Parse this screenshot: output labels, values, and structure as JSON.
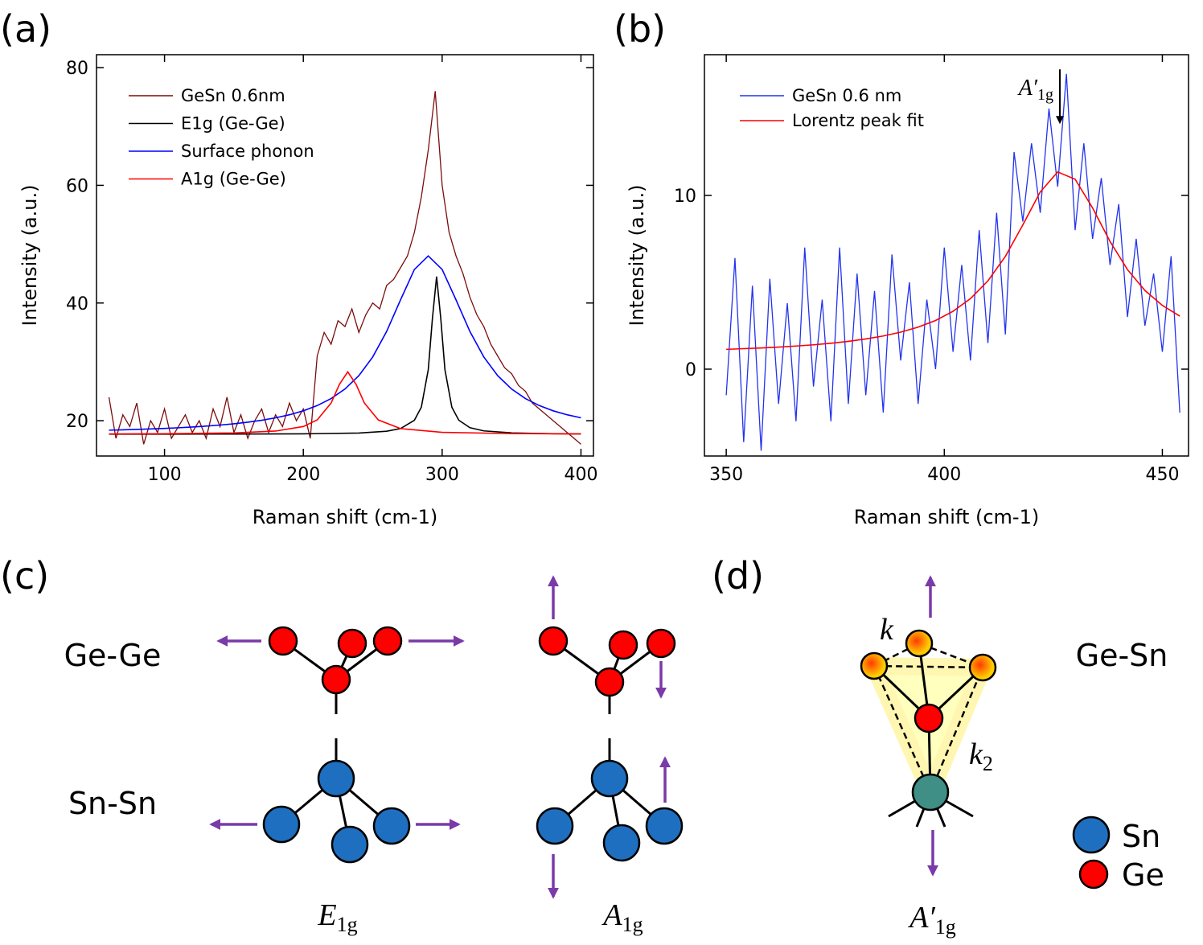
{
  "panel_labels": [
    "(a)",
    "(b)",
    "(c)",
    "(d)"
  ],
  "chart_data": [
    {
      "type": "line",
      "xlabel": "Raman shift (cm-1)",
      "ylabel": "Intensity (a.u.)",
      "xlim": [
        51,
        409
      ],
      "ylim": [
        14,
        82.2
      ],
      "xticks": [
        100,
        200,
        300,
        400
      ],
      "yticks": [
        20,
        40,
        60,
        80
      ],
      "legend": "upper left",
      "series": [
        {
          "name": "GeSn 0.6nm",
          "color": "#7b0c0c",
          "x": [
            60,
            65,
            70,
            75,
            80,
            85,
            90,
            95,
            100,
            105,
            110,
            115,
            120,
            125,
            130,
            135,
            140,
            145,
            150,
            155,
            160,
            165,
            170,
            175,
            180,
            185,
            190,
            195,
            200,
            205,
            210,
            215,
            220,
            225,
            230,
            235,
            240,
            245,
            250,
            255,
            260,
            265,
            270,
            275,
            280,
            285,
            290,
            295,
            300,
            305,
            310,
            315,
            320,
            325,
            330,
            335,
            340,
            345,
            350,
            355,
            360,
            365,
            370,
            375,
            380,
            385,
            390,
            395,
            400
          ],
          "values": [
            24,
            17,
            21,
            19,
            23,
            16,
            20,
            18,
            22,
            17,
            19,
            21,
            18,
            20,
            17,
            22,
            19,
            24,
            18,
            21,
            17,
            20,
            22,
            18,
            21,
            19,
            23,
            20,
            22,
            17,
            31,
            35,
            33,
            37,
            36,
            39,
            35,
            38,
            40,
            39,
            43,
            44,
            46,
            48,
            52,
            58,
            66,
            76,
            60,
            52,
            48,
            45,
            41,
            38,
            36,
            33,
            31,
            29,
            28,
            26,
            25,
            23,
            22,
            21,
            20,
            19,
            18,
            17,
            16
          ]
        },
        {
          "name": "E1g (Ge-Ge)",
          "color": "#000000",
          "x": [
            60,
            100,
            150,
            200,
            240,
            260,
            270,
            280,
            285,
            290,
            293,
            296,
            299,
            302,
            307,
            312,
            320,
            330,
            350,
            380,
            400
          ],
          "values": [
            17.71,
            17.72,
            17.73,
            17.77,
            17.91,
            18.21,
            18.66,
            20.08,
            22.29,
            28.68,
            37.4,
            44.5,
            37.4,
            28.68,
            22.29,
            20.08,
            18.81,
            18.27,
            17.93,
            17.79,
            17.76
          ]
        },
        {
          "name": "Surface phonon",
          "color": "#0000ff",
          "x": [
            60,
            70,
            80,
            90,
            100,
            110,
            120,
            130,
            140,
            150,
            160,
            170,
            180,
            190,
            200,
            210,
            220,
            230,
            240,
            250,
            260,
            270,
            280,
            290,
            300,
            310,
            320,
            330,
            340,
            350,
            360,
            370,
            380,
            390,
            400
          ],
          "values": [
            18.39,
            18.45,
            18.52,
            18.6,
            18.69,
            18.8,
            18.93,
            19.08,
            19.26,
            19.48,
            19.75,
            20.07,
            20.49,
            21.01,
            21.68,
            22.57,
            23.76,
            25.39,
            27.66,
            30.84,
            35.16,
            40.53,
            45.7,
            48.0,
            45.7,
            40.53,
            35.16,
            30.84,
            27.66,
            25.39,
            23.76,
            22.57,
            21.68,
            21.01,
            20.49
          ]
        },
        {
          "name": "A1g (Ge-Ge)",
          "color": "#ff0000",
          "x": [
            60,
            100,
            150,
            180,
            200,
            210,
            220,
            226,
            232,
            238,
            244,
            254,
            270,
            300,
            350,
            400
          ],
          "values": [
            17.75,
            17.79,
            17.92,
            18.24,
            19.01,
            20.13,
            23.0,
            26.18,
            28.3,
            26.18,
            23.0,
            20.13,
            18.66,
            18.02,
            17.81,
            17.75
          ]
        }
      ]
    },
    {
      "type": "line",
      "xlabel": "Raman shift (cm-1)",
      "ylabel": "Intensity (a.u.)",
      "xlim": [
        345,
        456
      ],
      "ylim": [
        -5,
        18.1
      ],
      "xticks": [
        350,
        400,
        450
      ],
      "yticks": [
        0,
        10
      ],
      "legend": "upper left",
      "annotations": [
        {
          "text": {
            "main": "A′",
            "sub": "1g"
          },
          "x": 426.5,
          "y": 14.2
        }
      ],
      "series": [
        {
          "name": "GeSn 0.6 nm",
          "color": "#2233ee",
          "x": [
            350,
            352,
            354,
            356,
            358,
            360,
            362,
            364,
            366,
            368,
            370,
            372,
            374,
            376,
            378,
            380,
            382,
            384,
            386,
            388,
            390,
            392,
            394,
            396,
            398,
            400,
            402,
            404,
            406,
            408,
            410,
            412,
            414,
            416,
            418,
            420,
            422,
            424,
            426,
            428,
            430,
            432,
            434,
            436,
            438,
            440,
            442,
            444,
            446,
            448,
            450,
            452,
            454
          ],
          "values": [
            -1.5,
            6.4,
            -4.2,
            4.8,
            -4.7,
            5.2,
            -2,
            3.8,
            -3,
            7,
            -1,
            4,
            -3,
            7,
            -2,
            5.5,
            -1.5,
            4.5,
            -2.5,
            6.6,
            0.5,
            5,
            -2,
            4,
            0,
            7,
            1,
            6,
            0.5,
            8,
            1.5,
            9,
            2,
            12.5,
            8.5,
            13,
            9,
            15,
            10.5,
            17,
            8,
            13,
            7.5,
            11,
            6,
            9.5,
            3,
            7.5,
            2.5,
            5.5,
            1,
            6.5,
            -2.5
          ]
        },
        {
          "name": "Lorentz peak fit",
          "color": "#ff0000",
          "x": [
            350,
            354,
            358,
            362,
            366,
            370,
            374,
            378,
            382,
            386,
            390,
            394,
            398,
            402,
            406,
            410,
            414,
            418,
            422,
            426,
            430,
            434,
            438,
            442,
            446,
            450,
            454
          ],
          "values": [
            1.14,
            1.18,
            1.22,
            1.27,
            1.33,
            1.4,
            1.49,
            1.6,
            1.74,
            1.91,
            2.13,
            2.42,
            2.8,
            3.33,
            4.06,
            5.08,
            6.49,
            8.3,
            10.2,
            11.35,
            10.93,
            9.28,
            7.35,
            5.73,
            4.53,
            3.67,
            3.05
          ]
        }
      ]
    }
  ],
  "diagram_c": {
    "rows": [
      "Ge-Ge",
      "Sn-Sn"
    ],
    "modes": [
      {
        "main": "E",
        "sub": "1g"
      },
      {
        "main": "A",
        "sub": "1g"
      }
    ]
  },
  "diagram_d": {
    "pair": "Ge-Sn",
    "spring_k": "k",
    "spring_k2": {
      "main": "k",
      "sub": "2"
    },
    "mode": {
      "main": "A′",
      "sub": "1g"
    },
    "legend": [
      "Sn",
      "Ge"
    ]
  }
}
